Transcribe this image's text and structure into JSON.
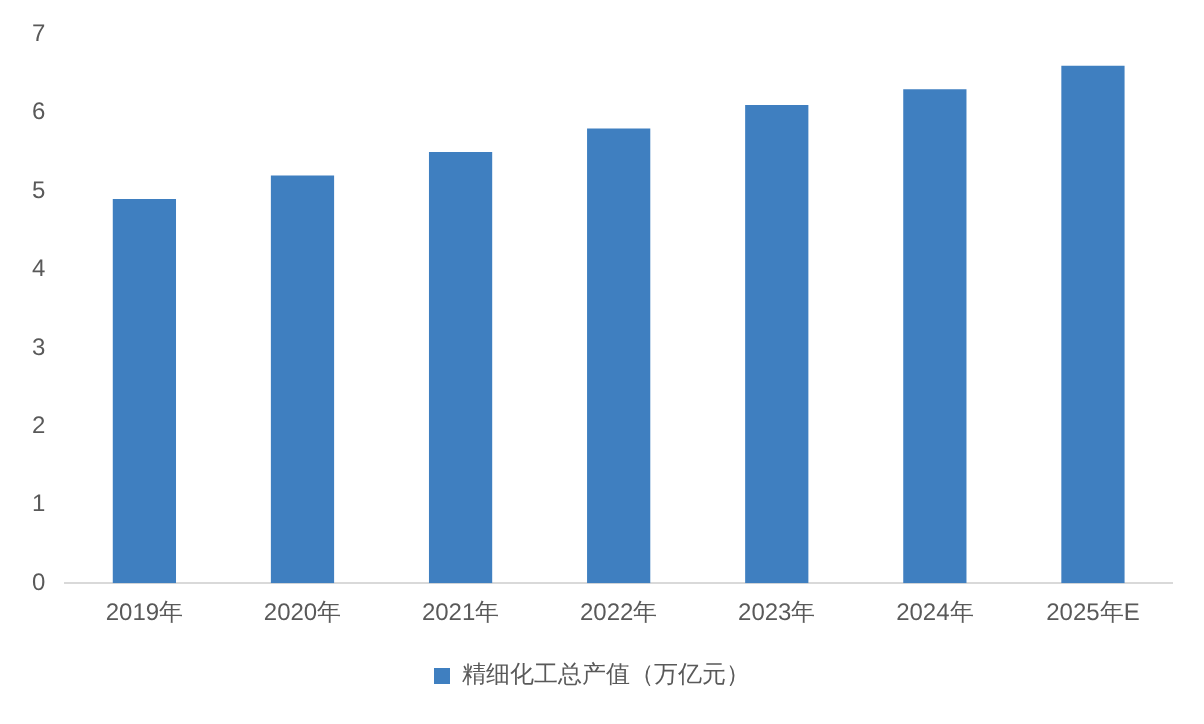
{
  "chart_data": {
    "type": "bar",
    "categories": [
      "2019年",
      "2020年",
      "2021年",
      "2022年",
      "2023年",
      "2024年",
      "2025年E"
    ],
    "series": [
      {
        "name": "精细化工总产值（万亿元）",
        "color": "#3f7fc0",
        "values": [
          4.9,
          5.2,
          5.5,
          5.8,
          6.1,
          6.3,
          6.6
        ]
      }
    ],
    "ylim": [
      0,
      7
    ],
    "yticks": [
      0,
      1,
      2,
      3,
      4,
      5,
      6,
      7
    ],
    "grid": false,
    "legend": "bottom"
  }
}
